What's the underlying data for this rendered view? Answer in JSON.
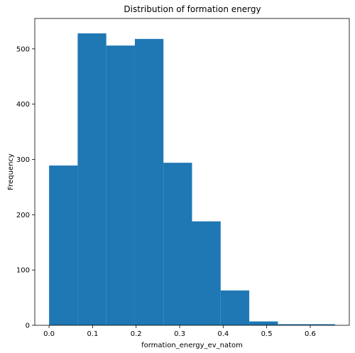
{
  "chart_data": {
    "type": "bar",
    "subtype": "histogram",
    "title": "Distribution of formation energy",
    "xlabel": "formation_energy_ev_natom",
    "ylabel": "Frequency",
    "bin_edges": [
      0.0,
      0.0657,
      0.1314,
      0.1971,
      0.2628,
      0.3285,
      0.3942,
      0.4599,
      0.5256,
      0.5913,
      0.657
    ],
    "values": [
      289,
      528,
      506,
      518,
      294,
      188,
      63,
      7,
      2,
      2
    ],
    "xlim": [
      -0.0328,
      0.6898
    ],
    "ylim": [
      0,
      555
    ],
    "xticks": [
      0.0,
      0.1,
      0.2,
      0.3,
      0.4,
      0.5,
      0.6
    ],
    "xtick_labels": [
      "0.0",
      "0.1",
      "0.2",
      "0.3",
      "0.4",
      "0.5",
      "0.6"
    ],
    "yticks": [
      0,
      100,
      200,
      300,
      400,
      500
    ],
    "ytick_labels": [
      "0",
      "100",
      "200",
      "300",
      "400",
      "500"
    ],
    "grid": false,
    "bar_color": "#1f77b4"
  }
}
